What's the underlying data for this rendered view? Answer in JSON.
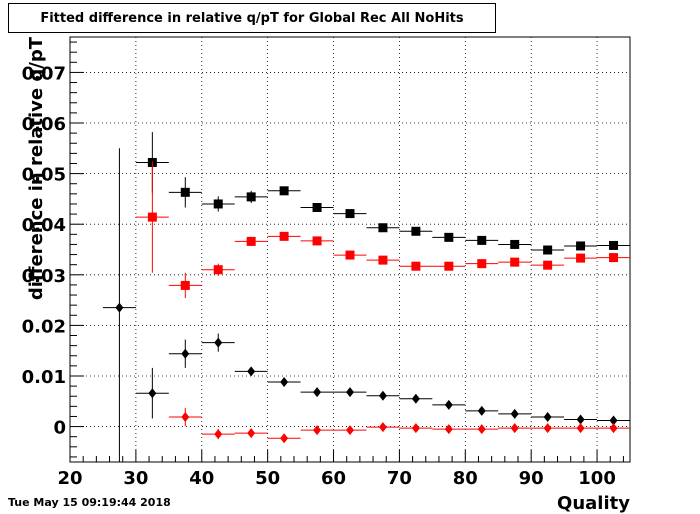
{
  "title": "Fitted difference in relative q/pT  for Global Rec All NoHits",
  "timestamp": "Tue May 15 09:19:44 2018",
  "chart_data": {
    "type": "scatter",
    "xlabel": "Quality",
    "ylabel": "difference in relative q/pT",
    "xlim": [
      20,
      105
    ],
    "ylim": [
      -0.007,
      0.077
    ],
    "grid": true,
    "x_ticks": [
      {
        "value": 20,
        "label": "20"
      },
      {
        "value": 30,
        "label": "30"
      },
      {
        "value": 40,
        "label": "40"
      },
      {
        "value": 50,
        "label": "50"
      },
      {
        "value": 60,
        "label": "60"
      },
      {
        "value": 70,
        "label": "70"
      },
      {
        "value": 80,
        "label": "80"
      },
      {
        "value": 90,
        "label": "90"
      },
      {
        "value": 100,
        "label": "100"
      }
    ],
    "y_ticks": [
      {
        "value": 0,
        "label": "0"
      },
      {
        "value": 0.01,
        "label": "0.01"
      },
      {
        "value": 0.02,
        "label": "0.02"
      },
      {
        "value": 0.03,
        "label": "0.03"
      },
      {
        "value": 0.04,
        "label": "0.04"
      },
      {
        "value": 0.05,
        "label": "0.05"
      },
      {
        "value": 0.06,
        "label": "0.06"
      },
      {
        "value": 0.07,
        "label": "0.07"
      }
    ],
    "x_half_width": 2.5,
    "series": [
      {
        "marker": "square",
        "color": "#000000",
        "points": [
          {
            "x": 32.5,
            "y": 0.0522,
            "err": 0.006
          },
          {
            "x": 37.5,
            "y": 0.0463,
            "err": 0.003
          },
          {
            "x": 42.5,
            "y": 0.044,
            "err": 0.0015
          },
          {
            "x": 47.5,
            "y": 0.0454,
            "err": 0.0012
          },
          {
            "x": 52.5,
            "y": 0.0466,
            "err": 0.0008
          },
          {
            "x": 57.5,
            "y": 0.0433,
            "err": 0.0006
          },
          {
            "x": 62.5,
            "y": 0.0421,
            "err": 0.0005
          },
          {
            "x": 67.5,
            "y": 0.0393,
            "err": 0.0004
          },
          {
            "x": 72.5,
            "y": 0.0386,
            "err": 0.0004
          },
          {
            "x": 77.5,
            "y": 0.0374,
            "err": 0.0003
          },
          {
            "x": 82.5,
            "y": 0.0368,
            "err": 0.0003
          },
          {
            "x": 87.5,
            "y": 0.036,
            "err": 0.0003
          },
          {
            "x": 92.5,
            "y": 0.0349,
            "err": 0.0003
          },
          {
            "x": 97.5,
            "y": 0.0357,
            "err": 0.0003
          },
          {
            "x": 102.5,
            "y": 0.0358,
            "err": 0.0003
          }
        ]
      },
      {
        "marker": "square",
        "color": "#ff0000",
        "points": [
          {
            "x": 32.5,
            "y": 0.0414,
            "err": 0.011
          },
          {
            "x": 37.5,
            "y": 0.0279,
            "err": 0.0025
          },
          {
            "x": 42.5,
            "y": 0.031,
            "err": 0.0012
          },
          {
            "x": 47.5,
            "y": 0.0366,
            "err": 0.0008
          },
          {
            "x": 52.5,
            "y": 0.0376,
            "err": 0.0006
          },
          {
            "x": 57.5,
            "y": 0.0367,
            "err": 0.0005
          },
          {
            "x": 62.5,
            "y": 0.0339,
            "err": 0.0004
          },
          {
            "x": 67.5,
            "y": 0.0329,
            "err": 0.0003
          },
          {
            "x": 72.5,
            "y": 0.0317,
            "err": 0.0003
          },
          {
            "x": 77.5,
            "y": 0.0317,
            "err": 0.0003
          },
          {
            "x": 82.5,
            "y": 0.0322,
            "err": 0.0003
          },
          {
            "x": 87.5,
            "y": 0.0325,
            "err": 0.0003
          },
          {
            "x": 92.5,
            "y": 0.0319,
            "err": 0.0003
          },
          {
            "x": 97.5,
            "y": 0.0333,
            "err": 0.0003
          },
          {
            "x": 102.5,
            "y": 0.0334,
            "err": 0.0003
          }
        ]
      },
      {
        "marker": "diamond",
        "color": "#000000",
        "points": [
          {
            "x": 27.5,
            "y": 0.0235,
            "err": 0.0315
          },
          {
            "x": 32.5,
            "y": 0.0066,
            "err": 0.005
          },
          {
            "x": 37.5,
            "y": 0.0144,
            "err": 0.0028
          },
          {
            "x": 42.5,
            "y": 0.0166,
            "err": 0.0018
          },
          {
            "x": 47.5,
            "y": 0.0109,
            "err": 0.0008
          },
          {
            "x": 52.5,
            "y": 0.0088,
            "err": 0.0006
          },
          {
            "x": 57.5,
            "y": 0.0068,
            "err": 0.0005
          },
          {
            "x": 62.5,
            "y": 0.0068,
            "err": 0.0004
          },
          {
            "x": 67.5,
            "y": 0.0061,
            "err": 0.0004
          },
          {
            "x": 72.5,
            "y": 0.0055,
            "err": 0.0003
          },
          {
            "x": 77.5,
            "y": 0.0043,
            "err": 0.0003
          },
          {
            "x": 82.5,
            "y": 0.0031,
            "err": 0.0003
          },
          {
            "x": 87.5,
            "y": 0.0025,
            "err": 0.0003
          },
          {
            "x": 92.5,
            "y": 0.0019,
            "err": 0.0003
          },
          {
            "x": 97.5,
            "y": 0.0014,
            "err": 0.0003
          },
          {
            "x": 102.5,
            "y": 0.0012,
            "err": 0.0003
          }
        ]
      },
      {
        "marker": "diamond",
        "color": "#ff0000",
        "points": [
          {
            "x": 37.5,
            "y": 0.0019,
            "err": 0.0018
          },
          {
            "x": 42.5,
            "y": -0.0015,
            "err": 0.001
          },
          {
            "x": 47.5,
            "y": -0.0013,
            "err": 0.0007
          },
          {
            "x": 52.5,
            "y": -0.0023,
            "err": 0.0005
          },
          {
            "x": 57.5,
            "y": -0.0007,
            "err": 0.0004
          },
          {
            "x": 62.5,
            "y": -0.0007,
            "err": 0.0003
          },
          {
            "x": 67.5,
            "y": -0.0001,
            "err": 0.0003
          },
          {
            "x": 72.5,
            "y": -0.0003,
            "err": 0.0003
          },
          {
            "x": 77.5,
            "y": -0.0005,
            "err": 0.0003
          },
          {
            "x": 82.5,
            "y": -0.0005,
            "err": 0.0003
          },
          {
            "x": 87.5,
            "y": -0.0003,
            "err": 0.0003
          },
          {
            "x": 92.5,
            "y": -0.0003,
            "err": 0.0003
          },
          {
            "x": 97.5,
            "y": -0.0003,
            "err": 0.0003
          },
          {
            "x": 102.5,
            "y": -0.0003,
            "err": 0.0003
          }
        ]
      }
    ]
  }
}
